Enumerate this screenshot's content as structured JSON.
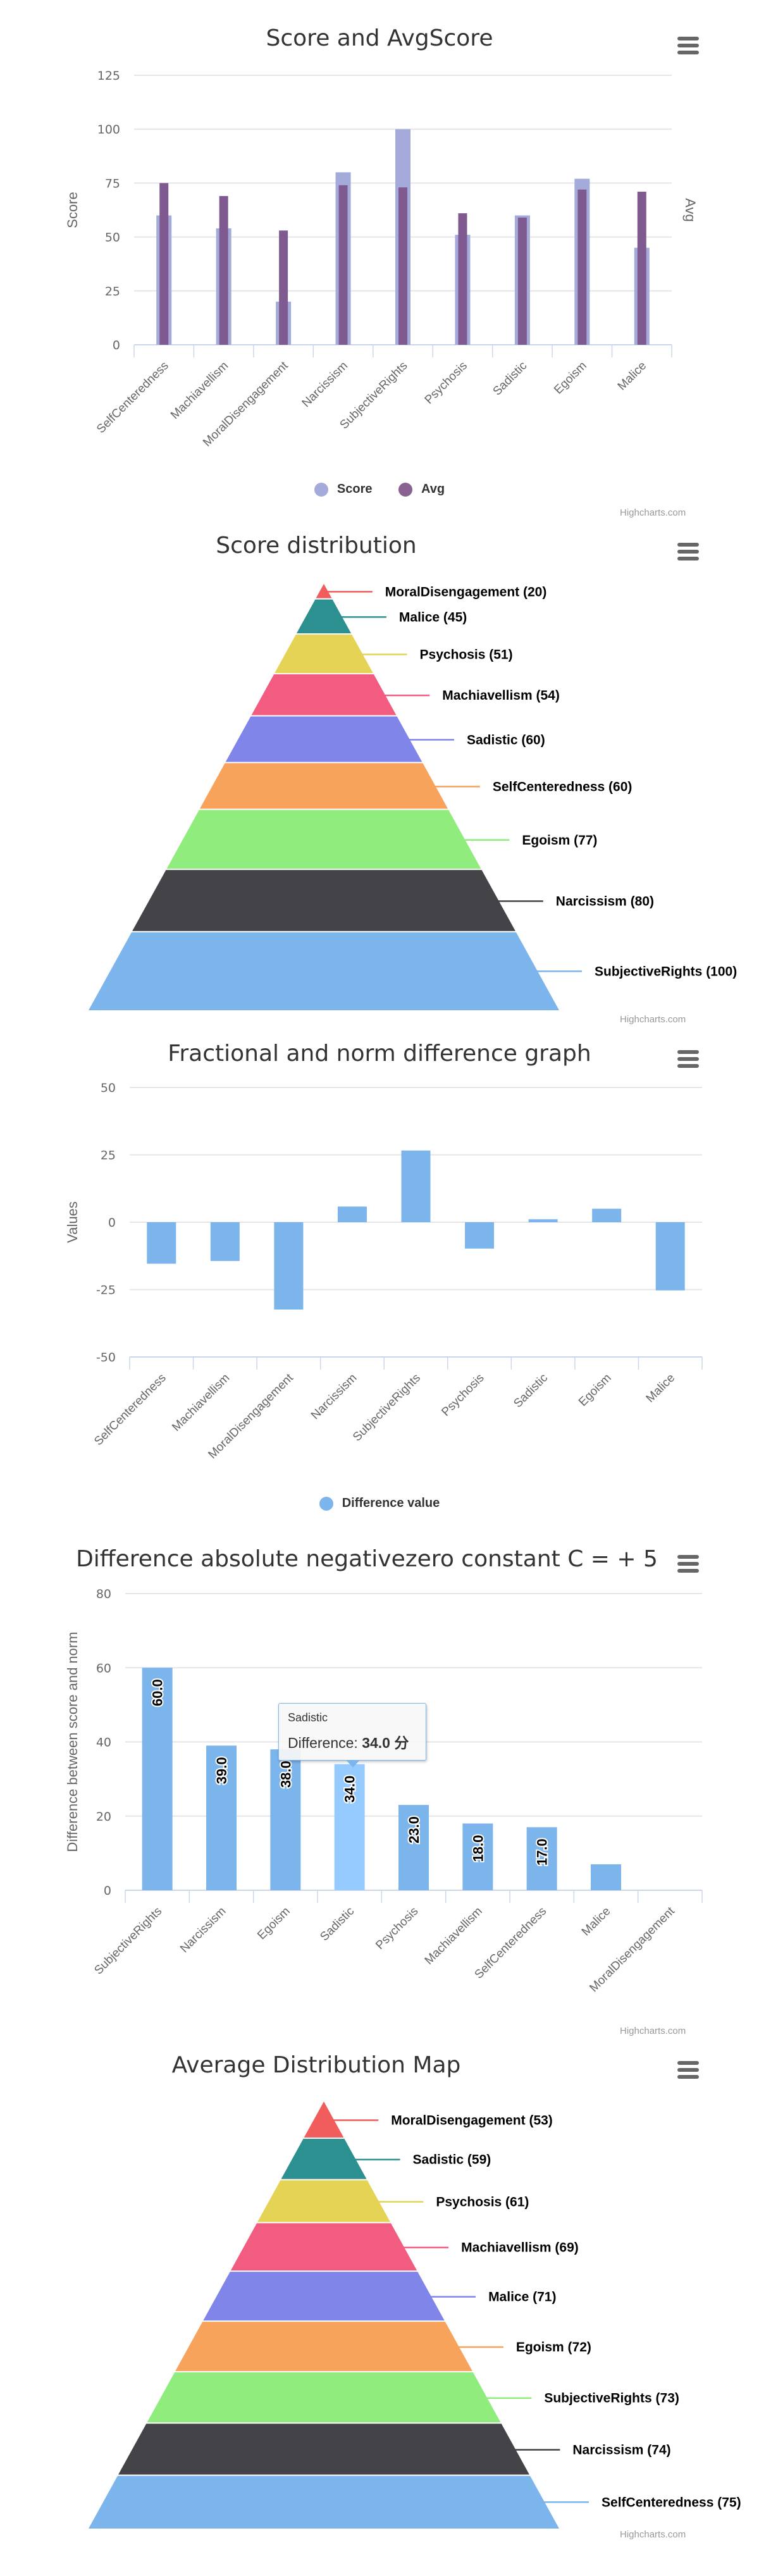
{
  "credits": "Highcharts.com",
  "menu_icon": "hamburger-menu-icon",
  "chart_data": [
    {
      "id": "score-avg",
      "type": "bar",
      "title": "Score and AvgScore",
      "categories": [
        "SelfCenteredness",
        "Machiavellism",
        "MoralDisengagement",
        "Narcissism",
        "SubjectiveRights",
        "Psychosis",
        "Sadistic",
        "Egoism",
        "Malice"
      ],
      "series": [
        {
          "name": "Score",
          "color": "#a4aad9",
          "values": [
            60,
            54,
            20,
            80,
            100,
            51,
            60,
            77,
            45
          ]
        },
        {
          "name": "Avg",
          "color": "#7f5a90",
          "values": [
            75,
            69,
            53,
            74,
            73,
            61,
            59,
            72,
            71
          ]
        }
      ],
      "ylabel": "Score",
      "ylabel_right": "Avg",
      "ylim": [
        0,
        125
      ],
      "yticks": [
        0,
        25,
        50,
        75,
        100,
        125
      ],
      "grid": true,
      "legend": "bottom-center"
    },
    {
      "id": "score-distribution",
      "type": "pyramid",
      "title": "Score distribution",
      "slices": [
        {
          "label": "MoralDisengagement",
          "value": 20,
          "color": "#f15c5c",
          "text": "MoralDisengagement (20)"
        },
        {
          "label": "Malice",
          "value": 45,
          "color": "#2b908f",
          "text": "Malice (45)"
        },
        {
          "label": "Psychosis",
          "value": 51,
          "color": "#e4d354",
          "text": "Psychosis (51)"
        },
        {
          "label": "Machiavellism",
          "value": 54,
          "color": "#f15c80",
          "text": "Machiavellism (54)"
        },
        {
          "label": "Sadistic",
          "value": 60,
          "color": "#8085e9",
          "text": "Sadistic (60)"
        },
        {
          "label": "SelfCenteredness",
          "value": 60,
          "color": "#f7a35c",
          "text": "SelfCenteredness (60)"
        },
        {
          "label": "Egoism",
          "value": 77,
          "color": "#90ed7d",
          "text": "Egoism (77)"
        },
        {
          "label": "Narcissism",
          "value": 80,
          "color": "#434348",
          "text": "Narcissism (80)"
        },
        {
          "label": "SubjectiveRights",
          "value": 100,
          "color": "#7cb5ec",
          "text": "SubjectiveRights (100)"
        }
      ]
    },
    {
      "id": "fractional-norm-difference",
      "type": "bar",
      "title": "Fractional and norm difference graph",
      "categories": [
        "SelfCenteredness",
        "Machiavellism",
        "MoralDisengagement",
        "Narcissism",
        "SubjectiveRights",
        "Psychosis",
        "Sadistic",
        "Egoism",
        "Malice"
      ],
      "series": [
        {
          "name": "Difference value",
          "color": "#7cb5ec",
          "values": [
            -15.4,
            -14.4,
            -32.4,
            5.8,
            26.6,
            -9.8,
            1.1,
            5.0,
            -25.3
          ]
        }
      ],
      "ylabel": "Values",
      "ylim": [
        -50,
        50
      ],
      "yticks": [
        -50,
        -25,
        0,
        25,
        50
      ],
      "grid": true,
      "legend": "bottom-center"
    },
    {
      "id": "difference-absolute",
      "type": "bar",
      "title": "Difference absolute negativezero constant C = + 5",
      "categories": [
        "SubjectiveRights",
        "Narcissism",
        "Egoism",
        "Sadistic",
        "Psychosis",
        "Machiavellism",
        "SelfCenteredness",
        "Malice",
        "MoralDisengagement"
      ],
      "series": [
        {
          "name": "Difference",
          "color": "#7cb5ec",
          "hover_color": "#96cbff",
          "values": [
            60,
            39,
            38,
            34,
            23,
            18,
            17,
            7,
            0
          ],
          "data_labels": [
            "60.0",
            "39.0",
            "38.0",
            "34.0",
            "23.0",
            "18.0",
            "17.0",
            "",
            ""
          ]
        }
      ],
      "ylabel": "Difference between score and norm",
      "ylim": [
        0,
        80
      ],
      "yticks": [
        0,
        20,
        40,
        60,
        80
      ],
      "grid": true,
      "tooltip": {
        "category": "Sadistic",
        "label": "Difference:",
        "value": "34.0 分"
      }
    },
    {
      "id": "average-distribution",
      "type": "pyramid",
      "title": "Average Distribution Map",
      "slices": [
        {
          "label": "MoralDisengagement",
          "value": 53,
          "color": "#f15c5c",
          "text": "MoralDisengagement (53)"
        },
        {
          "label": "Sadistic",
          "value": 59,
          "color": "#2b908f",
          "text": "Sadistic (59)"
        },
        {
          "label": "Psychosis",
          "value": 61,
          "color": "#e4d354",
          "text": "Psychosis (61)"
        },
        {
          "label": "Machiavellism",
          "value": 69,
          "color": "#f15c80",
          "text": "Machiavellism (69)"
        },
        {
          "label": "Malice",
          "value": 71,
          "color": "#8085e9",
          "text": "Malice (71)"
        },
        {
          "label": "Egoism",
          "value": 72,
          "color": "#f7a35c",
          "text": "Egoism (72)"
        },
        {
          "label": "SubjectiveRights",
          "value": 73,
          "color": "#90ed7d",
          "text": "SubjectiveRights (73)"
        },
        {
          "label": "Narcissism",
          "value": 74,
          "color": "#434348",
          "text": "Narcissism (74)"
        },
        {
          "label": "SelfCenteredness",
          "value": 75,
          "color": "#7cb5ec",
          "text": "SelfCenteredness (75)"
        }
      ]
    }
  ]
}
